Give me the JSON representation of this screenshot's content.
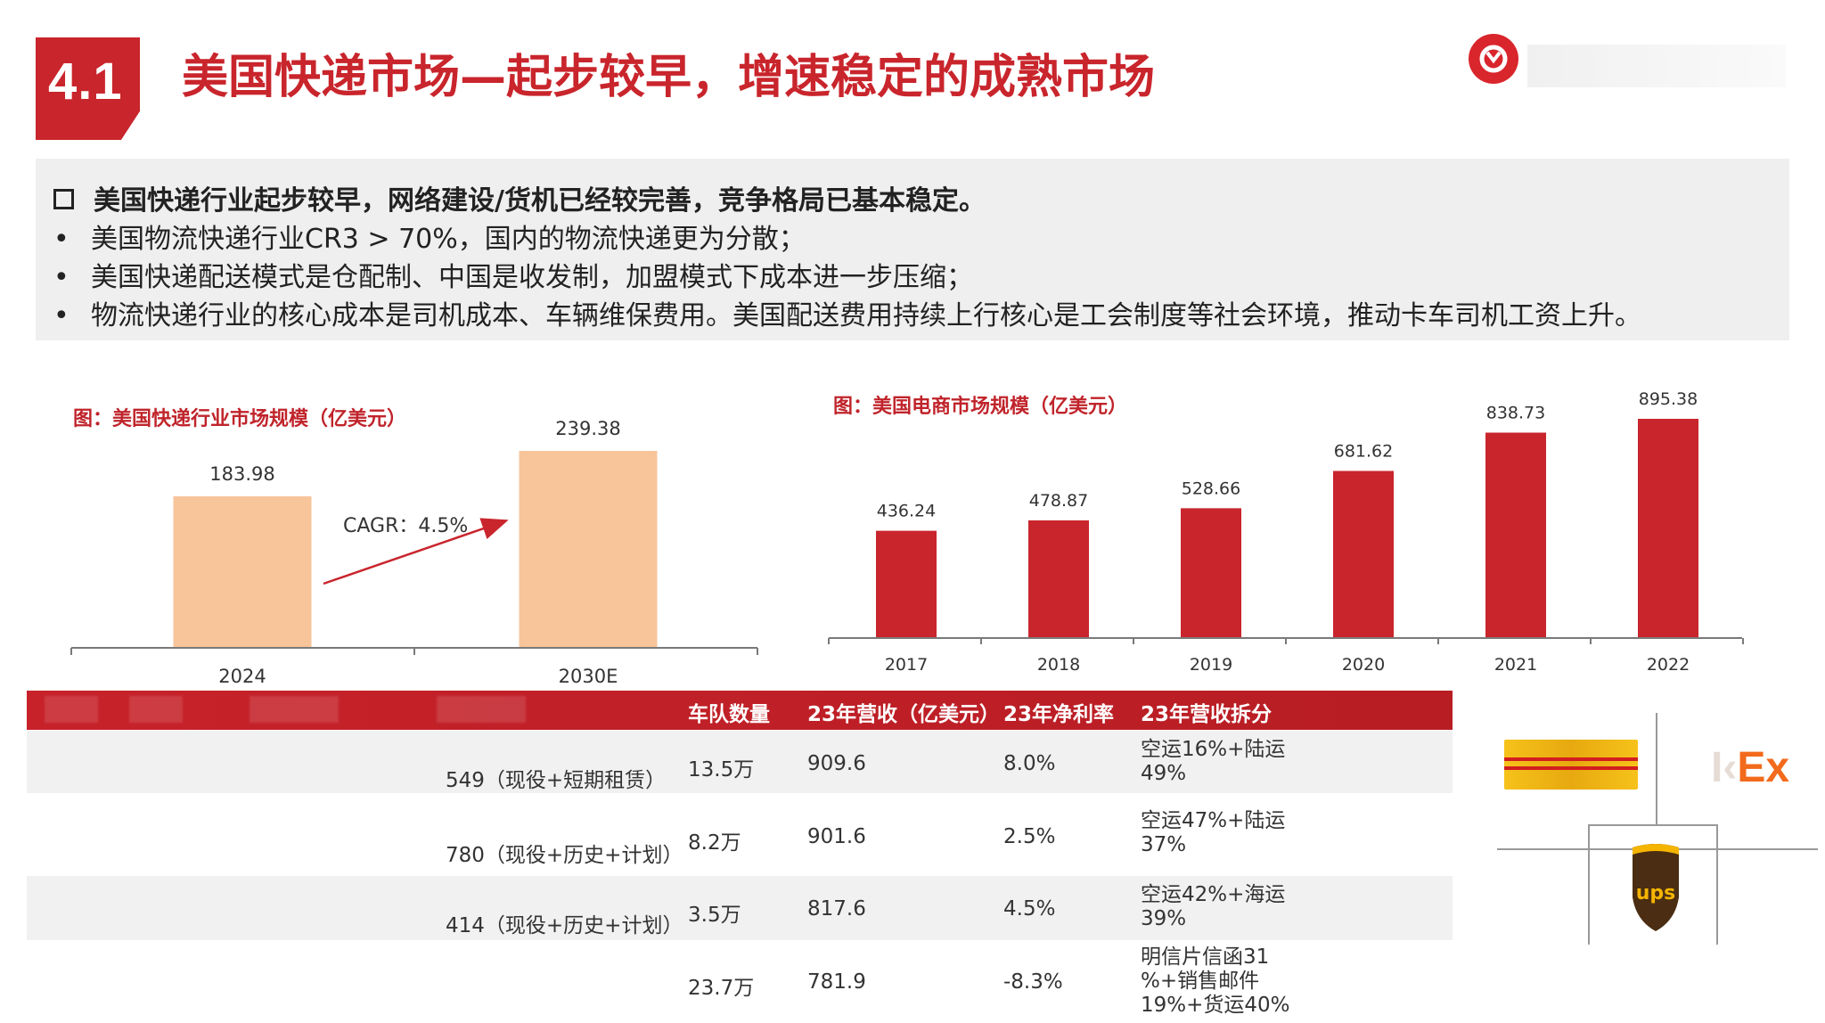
{
  "header": {
    "section_number": "4.1",
    "title": "美国快递市场—起步较早，增速稳定的成熟市场"
  },
  "summary": {
    "headline": "美国快递行业起步较早，网络建设/货机已经较完善，竞争格局已基本稳定。",
    "bullets": [
      "美国物流快递行业CR3 > 70%，国内的物流快递更为分散；",
      "美国快递配送模式是仓配制、中国是收发制，加盟模式下成本进一步压缩；",
      "物流快递行业的核心成本是司机成本、车辆维保费用。美国配送费用持续上行核心是工会制度等社会环境，推动卡车司机工资上升。"
    ],
    "bullet_symbol": "•"
  },
  "colors": {
    "brand_red": "#c9252c",
    "bar_peach": "#f8c49a",
    "bar_red": "#c9252c"
  },
  "chart_data": [
    {
      "type": "bar",
      "title": "图：美国快递行业市场规模（亿美元）",
      "categories": [
        "2024",
        "2030E"
      ],
      "values": [
        183.98,
        239.38
      ],
      "value_labels": [
        "183.98",
        "239.38"
      ],
      "annotation": "CAGR：4.5%",
      "ylim": [
        0,
        260
      ],
      "grid": false
    },
    {
      "type": "bar",
      "title": "图：美国电商市场规模（亿美元）",
      "categories": [
        "2017",
        "2018",
        "2019",
        "2020",
        "2021",
        "2022"
      ],
      "values": [
        436.24,
        478.87,
        528.66,
        681.62,
        838.73,
        895.38
      ],
      "value_labels": [
        "436.24",
        "478.87",
        "528.66",
        "681.62",
        "838.73",
        "895.38"
      ],
      "ylim": [
        0,
        950
      ],
      "grid": false
    }
  ],
  "table": {
    "headers": [
      "车队数量",
      "23年营收（亿美元）",
      "23年净利率",
      "23年营收拆分"
    ],
    "rows": [
      {
        "fleet_detail": "549（现役+短期租赁）",
        "vehicles": "13.5万",
        "revenue": "909.6",
        "margin": "8.0%",
        "split": "空运16%+陆运49%"
      },
      {
        "fleet_detail": "780（现役+历史+计划）",
        "vehicles": "8.2万",
        "revenue": "901.6",
        "margin": "2.5%",
        "split": "空运47%+陆运37%"
      },
      {
        "fleet_detail": "414（现役+历史+计划）",
        "vehicles": "3.5万",
        "revenue": "817.6",
        "margin": "4.5%",
        "split": "空运42%+海运39%"
      },
      {
        "fleet_detail": "",
        "vehicles": "23.7万",
        "revenue": "781.9",
        "margin": "-8.3%",
        "split": "明信片信函31 %+销售邮件19%+货运40%"
      }
    ]
  },
  "logos": {
    "fedex_text": "Ex",
    "ups_text": "ups"
  }
}
